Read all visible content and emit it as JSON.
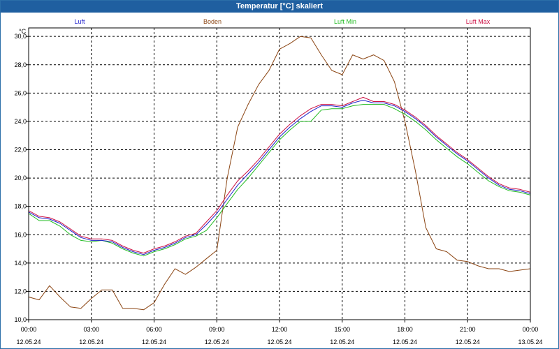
{
  "window": {
    "title": "Temperatur [°C] skaliert"
  },
  "chart_data": {
    "type": "line",
    "title": "Temperatur [°C] skaliert",
    "ylabel": "°C",
    "xlabel": "",
    "ylim": [
      10.0,
      30.6
    ],
    "xlim": [
      0,
      24
    ],
    "grid": true,
    "y_ticks": [
      "10,0",
      "12,0",
      "14,0",
      "16,0",
      "18,0",
      "20,0",
      "22,0",
      "24,0",
      "26,0",
      "28,0",
      "30,0"
    ],
    "x_ticks": [
      {
        "time": "00:00",
        "date": "12.05.24"
      },
      {
        "time": "03:00",
        "date": "12.05.24"
      },
      {
        "time": "06:00",
        "date": "12.05.24"
      },
      {
        "time": "09:00",
        "date": "12.05.24"
      },
      {
        "time": "12:00",
        "date": "12.05.24"
      },
      {
        "time": "15:00",
        "date": "12.05.24"
      },
      {
        "time": "18:00",
        "date": "12.05.24"
      },
      {
        "time": "21:00",
        "date": "12.05.24"
      },
      {
        "time": "00:00",
        "date": "13.05.24"
      }
    ],
    "series": [
      {
        "name": "Luft",
        "color": "#2222cc",
        "x": [
          0,
          0.5,
          1,
          1.5,
          2,
          2.5,
          3,
          3.5,
          4,
          4.5,
          5,
          5.5,
          6,
          6.5,
          7,
          7.5,
          8,
          8.5,
          9,
          9.5,
          10,
          10.5,
          11,
          11.5,
          12,
          12.5,
          13,
          13.5,
          14,
          14.5,
          15,
          15.5,
          16,
          16.5,
          17,
          17.5,
          18,
          18.5,
          19,
          19.5,
          20,
          20.5,
          21,
          21.5,
          22,
          22.5,
          23,
          23.5,
          24
        ],
        "values": [
          17.6,
          17.2,
          17.1,
          16.8,
          16.3,
          15.8,
          15.6,
          15.6,
          15.5,
          15.1,
          14.8,
          14.6,
          14.9,
          15.1,
          15.4,
          15.8,
          16.0,
          16.7,
          17.5,
          18.5,
          19.5,
          20.3,
          21.1,
          22.0,
          22.9,
          23.6,
          24.2,
          24.7,
          25.1,
          25.1,
          25.0,
          25.3,
          25.5,
          25.3,
          25.3,
          25.1,
          24.7,
          24.2,
          23.6,
          22.9,
          22.3,
          21.7,
          21.2,
          20.6,
          20.0,
          19.5,
          19.2,
          19.1,
          18.9
        ]
      },
      {
        "name": "Boden",
        "color": "#8b4513",
        "x": [
          0,
          0.5,
          1,
          1.5,
          2,
          2.5,
          3,
          3.5,
          4,
          4.5,
          5,
          5.5,
          6,
          6.5,
          7,
          7.5,
          8,
          8.5,
          9,
          9.5,
          10,
          10.5,
          11,
          11.5,
          12,
          12.5,
          13,
          13.5,
          14,
          14.5,
          15,
          15.5,
          16,
          16.5,
          17,
          17.5,
          18,
          18.5,
          19,
          19.5,
          20,
          20.5,
          21,
          21.5,
          22,
          22.5,
          23,
          23.5,
          24
        ],
        "values": [
          11.6,
          11.4,
          12.4,
          11.6,
          10.9,
          10.8,
          11.5,
          12.1,
          12.1,
          10.8,
          10.8,
          10.7,
          11.2,
          12.5,
          13.6,
          13.2,
          13.7,
          14.3,
          14.9,
          20.0,
          23.6,
          25.2,
          26.6,
          27.6,
          29.1,
          29.5,
          30.0,
          29.9,
          28.7,
          27.6,
          27.3,
          28.7,
          28.4,
          28.7,
          28.3,
          26.8,
          24.0,
          20.5,
          16.5,
          15.0,
          14.8,
          14.2,
          14.1,
          13.8,
          13.6,
          13.6,
          13.4,
          13.5,
          13.6
        ]
      },
      {
        "name": "Luft Min",
        "color": "#22bb22",
        "x": [
          0,
          0.5,
          1,
          1.5,
          2,
          2.5,
          3,
          3.5,
          4,
          4.5,
          5,
          5.5,
          6,
          6.5,
          7,
          7.5,
          8,
          8.5,
          9,
          9.5,
          10,
          10.5,
          11,
          11.5,
          12,
          12.5,
          13,
          13.5,
          14,
          14.5,
          15,
          15.5,
          16,
          16.5,
          17,
          17.5,
          18,
          18.5,
          19,
          19.5,
          20,
          20.5,
          21,
          21.5,
          22,
          22.5,
          23,
          23.5,
          24
        ],
        "values": [
          17.5,
          17.0,
          17.0,
          16.6,
          16.0,
          15.6,
          15.5,
          15.6,
          15.4,
          15.0,
          14.7,
          14.5,
          14.8,
          15.0,
          15.3,
          15.7,
          15.9,
          16.3,
          17.2,
          18.2,
          19.2,
          20.0,
          20.9,
          21.8,
          22.7,
          23.4,
          24.0,
          24.0,
          24.8,
          24.9,
          24.9,
          25.1,
          25.2,
          25.2,
          25.2,
          24.9,
          24.5,
          24.0,
          23.4,
          22.7,
          22.1,
          21.5,
          21.0,
          20.4,
          19.8,
          19.4,
          19.1,
          19.0,
          18.8
        ]
      },
      {
        "name": "Luft Max",
        "color": "#cc1144",
        "x": [
          0,
          0.5,
          1,
          1.5,
          2,
          2.5,
          3,
          3.5,
          4,
          4.5,
          5,
          5.5,
          6,
          6.5,
          7,
          7.5,
          8,
          8.5,
          9,
          9.5,
          10,
          10.5,
          11,
          11.5,
          12,
          12.5,
          13,
          13.5,
          14,
          14.5,
          15,
          15.5,
          16,
          16.5,
          17,
          17.5,
          18,
          18.5,
          19,
          19.5,
          20,
          20.5,
          21,
          21.5,
          22,
          22.5,
          23,
          23.5,
          24
        ],
        "values": [
          17.7,
          17.3,
          17.2,
          16.9,
          16.4,
          15.9,
          15.7,
          15.7,
          15.6,
          15.2,
          14.9,
          14.7,
          15.0,
          15.2,
          15.5,
          15.9,
          16.1,
          16.9,
          17.7,
          18.8,
          19.8,
          20.5,
          21.3,
          22.2,
          23.1,
          23.8,
          24.4,
          24.9,
          25.2,
          25.2,
          25.1,
          25.4,
          25.7,
          25.4,
          25.4,
          25.2,
          24.8,
          24.3,
          23.7,
          23.0,
          22.4,
          21.8,
          21.3,
          20.7,
          20.1,
          19.6,
          19.3,
          19.2,
          19.0
        ]
      }
    ]
  }
}
